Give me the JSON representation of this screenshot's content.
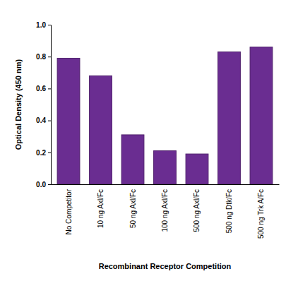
{
  "chart_data": {
    "type": "bar",
    "categories": [
      "No Competitor",
      "10 ng Axl/Fc",
      "50 ng Axl/Fc",
      "100 ng Axl/Fc",
      "500 ng Axl/Fc",
      "500 ng Dtk/Fc",
      "500 ng Trk A/Fc"
    ],
    "values": [
      0.79,
      0.68,
      0.31,
      0.21,
      0.19,
      0.83,
      0.86
    ],
    "color": "#6a2d91",
    "x_label": "Recombinant Receptor Competition",
    "y_label": "Optical Density (450 nm)",
    "ylim": [
      0,
      1
    ],
    "yticks": [
      {
        "value": 0,
        "label": "0.0"
      },
      0.2,
      0.4,
      0.6,
      0.8,
      {
        "value": 1,
        "label": "1.0"
      }
    ],
    "grid": false
  }
}
